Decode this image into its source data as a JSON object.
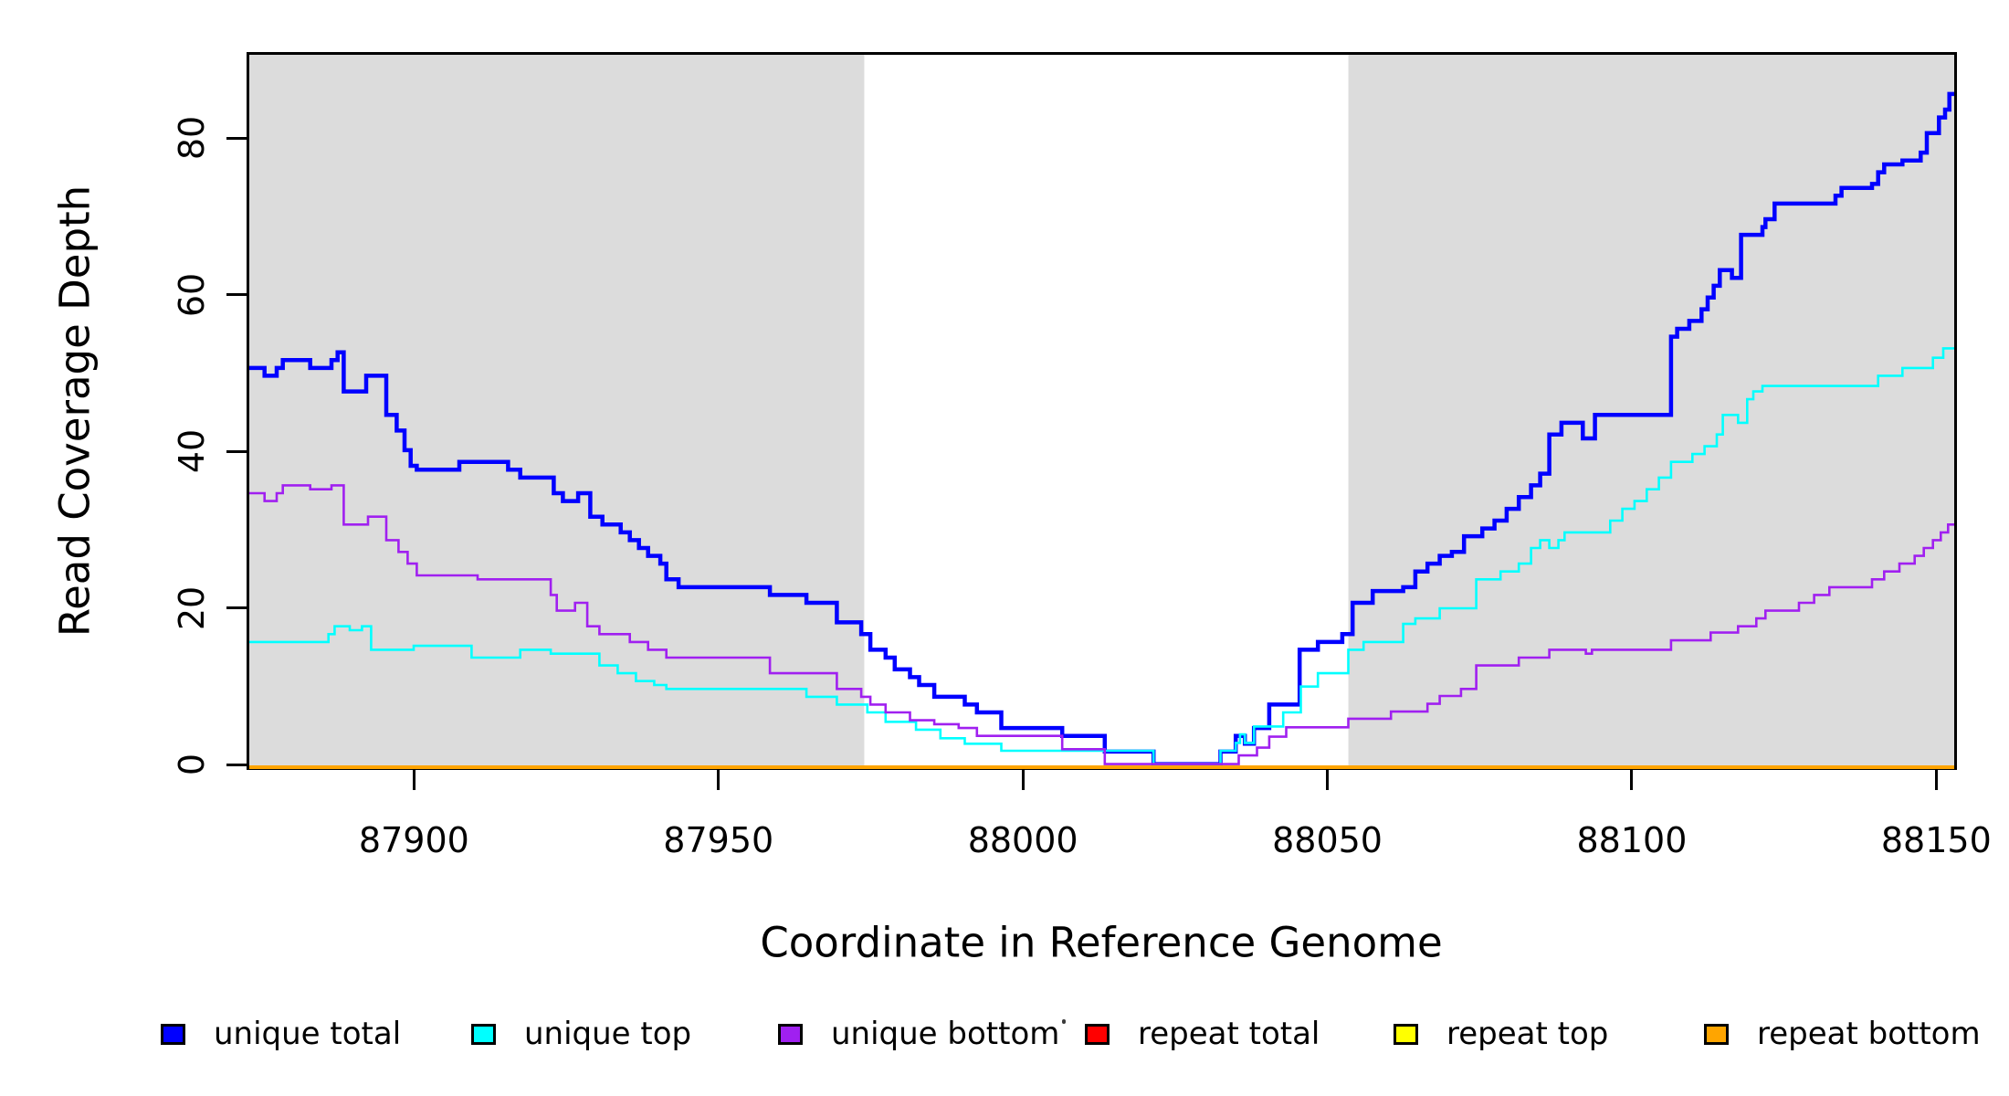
{
  "chart_data": {
    "type": "line",
    "subtype": "step",
    "title": "",
    "xlabel": "Coordinate in Reference Genome",
    "ylabel": "Read Coverage Depth",
    "xlim": [
      87872.5,
      88152.5
    ],
    "ylim": [
      0,
      91
    ],
    "grid": false,
    "plot_border_color": "#000000",
    "plot_background": "#FFFFFF",
    "x_tick_values": [
      87900,
      87950,
      88000,
      88050,
      88100,
      88150
    ],
    "x_tick_labels": [
      "87900",
      "87950",
      "88000",
      "88050",
      "88100",
      "88150"
    ],
    "y_tick_values": [
      0,
      20,
      40,
      60,
      80
    ],
    "y_tick_labels": [
      "0",
      "20",
      "40",
      "60",
      "80"
    ],
    "shaded_regions": [
      {
        "x_from": 87872.5,
        "x_to": 87973.5,
        "color": "#DCDCDC"
      },
      {
        "x_from": 88053.0,
        "x_to": 88152.5,
        "color": "#DCDCDC"
      }
    ],
    "series": [
      {
        "name": "unique total",
        "color": "#0000FF",
        "line_width": 4.5,
        "steps": [
          [
            87872.5,
            51
          ],
          [
            87875,
            50
          ],
          [
            87877,
            51
          ],
          [
            87878,
            52
          ],
          [
            87882.5,
            51
          ],
          [
            87886,
            52
          ],
          [
            87887,
            53
          ],
          [
            87888,
            48
          ],
          [
            87891.7,
            50
          ],
          [
            87895,
            45
          ],
          [
            87896.7,
            43
          ],
          [
            87898,
            40.5
          ],
          [
            87899,
            38.5
          ],
          [
            87900,
            38
          ],
          [
            87907,
            39
          ],
          [
            87915,
            38
          ],
          [
            87917,
            37
          ],
          [
            87922.5,
            35
          ],
          [
            87924,
            34
          ],
          [
            87926.5,
            35
          ],
          [
            87928.5,
            32
          ],
          [
            87930.5,
            31
          ],
          [
            87933.5,
            30
          ],
          [
            87935,
            29
          ],
          [
            87936.5,
            28
          ],
          [
            87938,
            27
          ],
          [
            87940,
            26
          ],
          [
            87941,
            24
          ],
          [
            87943,
            23
          ],
          [
            87958,
            22
          ],
          [
            87964,
            21
          ],
          [
            87969,
            18.5
          ],
          [
            87973,
            17
          ],
          [
            87974.5,
            15
          ],
          [
            87977,
            14
          ],
          [
            87978.5,
            12.5
          ],
          [
            87981,
            11.5
          ],
          [
            87982.5,
            10.5
          ],
          [
            87985,
            9
          ],
          [
            87990,
            8
          ],
          [
            87992,
            7
          ],
          [
            87996,
            5
          ],
          [
            88006,
            4
          ],
          [
            88013,
            2
          ],
          [
            88021,
            0.4
          ],
          [
            88032,
            2
          ],
          [
            88034.5,
            4
          ],
          [
            88036,
            3
          ],
          [
            88037.5,
            5
          ],
          [
            88040,
            8
          ],
          [
            88045,
            15
          ],
          [
            88048,
            16
          ],
          [
            88052,
            17
          ],
          [
            88053.7,
            21
          ],
          [
            88057,
            22.5
          ],
          [
            88062,
            23
          ],
          [
            88064,
            25
          ],
          [
            88066,
            26
          ],
          [
            88068,
            27
          ],
          [
            88070,
            27.5
          ],
          [
            88072,
            29.5
          ],
          [
            88075,
            30.5
          ],
          [
            88077,
            31.5
          ],
          [
            88079,
            33
          ],
          [
            88081,
            34.5
          ],
          [
            88083,
            36
          ],
          [
            88084.5,
            37.5
          ],
          [
            88086,
            42.5
          ],
          [
            88088,
            44
          ],
          [
            88091.5,
            42
          ],
          [
            88093.5,
            45
          ],
          [
            88106,
            55
          ],
          [
            88107,
            56
          ],
          [
            88109,
            57
          ],
          [
            88111,
            58.5
          ],
          [
            88112,
            60
          ],
          [
            88113,
            61.5
          ],
          [
            88114,
            63.5
          ],
          [
            88116,
            62.5
          ],
          [
            88117.5,
            68
          ],
          [
            88121,
            69
          ],
          [
            88121.5,
            70
          ],
          [
            88123,
            72
          ],
          [
            88133,
            73
          ],
          [
            88134,
            74
          ],
          [
            88139,
            74.5
          ],
          [
            88140,
            76
          ],
          [
            88141,
            77
          ],
          [
            88144,
            77.5
          ],
          [
            88147,
            78.5
          ],
          [
            88148,
            81
          ],
          [
            88150,
            83
          ],
          [
            88151,
            84
          ],
          [
            88151.7,
            86
          ]
        ]
      },
      {
        "name": "unique top",
        "color": "#00FFFF",
        "line_width": 2.6,
        "steps": [
          [
            87872.5,
            16
          ],
          [
            87885.5,
            17
          ],
          [
            87886.5,
            18
          ],
          [
            87889,
            17.5
          ],
          [
            87891,
            18
          ],
          [
            87892.5,
            15
          ],
          [
            87899.5,
            15.5
          ],
          [
            87909,
            14
          ],
          [
            87917,
            15
          ],
          [
            87922,
            14.5
          ],
          [
            87930,
            13
          ],
          [
            87933,
            12
          ],
          [
            87936,
            11
          ],
          [
            87939,
            10.5
          ],
          [
            87941,
            10
          ],
          [
            87964,
            9
          ],
          [
            87969,
            8
          ],
          [
            87974,
            7
          ],
          [
            87977,
            5.8
          ],
          [
            87982,
            4.8
          ],
          [
            87986,
            3.7
          ],
          [
            87990,
            3
          ],
          [
            87996,
            2.1
          ],
          [
            88021,
            0.4
          ],
          [
            88032,
            2.1
          ],
          [
            88034.5,
            3.1
          ],
          [
            88035.2,
            4.2
          ],
          [
            88036,
            3.1
          ],
          [
            88037.5,
            5.2
          ],
          [
            88042.3,
            7
          ],
          [
            88045.2,
            10.3
          ],
          [
            88048,
            12
          ],
          [
            88053,
            15
          ],
          [
            88055.5,
            16
          ],
          [
            88062,
            18.3
          ],
          [
            88064,
            19
          ],
          [
            88068,
            20.3
          ],
          [
            88074,
            24
          ],
          [
            88078,
            25
          ],
          [
            88081,
            26
          ],
          [
            88083,
            28
          ],
          [
            88084.5,
            29
          ],
          [
            88086,
            28
          ],
          [
            88087.5,
            29
          ],
          [
            88088.5,
            30
          ],
          [
            88096,
            31.5
          ],
          [
            88098,
            33
          ],
          [
            88100,
            34
          ],
          [
            88102,
            35.5
          ],
          [
            88104,
            37
          ],
          [
            88106,
            39
          ],
          [
            88109.5,
            40
          ],
          [
            88111.5,
            41
          ],
          [
            88113.5,
            42.5
          ],
          [
            88114.5,
            45
          ],
          [
            88117,
            44
          ],
          [
            88118.5,
            47
          ],
          [
            88119.5,
            48
          ],
          [
            88121,
            48.7
          ],
          [
            88140,
            50
          ],
          [
            88144,
            51
          ],
          [
            88149,
            52.3
          ],
          [
            88150.7,
            53.5
          ]
        ]
      },
      {
        "name": "unique bottom",
        "color": "#A020F0",
        "line_width": 2.6,
        "steps": [
          [
            87872.5,
            35
          ],
          [
            87875,
            34
          ],
          [
            87877,
            35
          ],
          [
            87878,
            36
          ],
          [
            87882.5,
            35.5
          ],
          [
            87886,
            36
          ],
          [
            87888,
            31
          ],
          [
            87892,
            32
          ],
          [
            87895,
            29
          ],
          [
            87897,
            27.5
          ],
          [
            87898.5,
            26
          ],
          [
            87900,
            24.5
          ],
          [
            87910,
            24
          ],
          [
            87922,
            22
          ],
          [
            87923,
            20
          ],
          [
            87926,
            21
          ],
          [
            87928,
            18
          ],
          [
            87930,
            17
          ],
          [
            87935,
            16
          ],
          [
            87938,
            15
          ],
          [
            87941,
            14
          ],
          [
            87958,
            12
          ],
          [
            87969,
            10
          ],
          [
            87973,
            9
          ],
          [
            87974.5,
            8
          ],
          [
            87977,
            7
          ],
          [
            87981,
            6
          ],
          [
            87985,
            5.5
          ],
          [
            87989,
            5
          ],
          [
            87992,
            4
          ],
          [
            88006,
            2.3
          ],
          [
            88013,
            0.4
          ],
          [
            88035,
            1.5
          ],
          [
            88038,
            2.5
          ],
          [
            88040,
            3.9
          ],
          [
            88042.8,
            5.1
          ],
          [
            88053,
            6.2
          ],
          [
            88060,
            7.1
          ],
          [
            88066,
            8.1
          ],
          [
            88068,
            9.1
          ],
          [
            88071.5,
            10
          ],
          [
            88074,
            13
          ],
          [
            88081,
            14
          ],
          [
            88086,
            15
          ],
          [
            88092,
            14.5
          ],
          [
            88093,
            15
          ],
          [
            88106,
            16.2
          ],
          [
            88112.5,
            17.2
          ],
          [
            88117,
            18
          ],
          [
            88120,
            19
          ],
          [
            88121.5,
            20
          ],
          [
            88127,
            21
          ],
          [
            88129.5,
            22
          ],
          [
            88132,
            23
          ],
          [
            88139,
            24
          ],
          [
            88141,
            25
          ],
          [
            88143.5,
            26
          ],
          [
            88146,
            27
          ],
          [
            88147.5,
            28
          ],
          [
            88149,
            29
          ],
          [
            88150.3,
            30
          ],
          [
            88151.5,
            31
          ]
        ]
      },
      {
        "name": "repeat total",
        "color": "#FF0000",
        "line_width": 4,
        "steps": [
          [
            87872.5,
            0
          ]
        ]
      },
      {
        "name": "repeat top",
        "color": "#FFFF00",
        "line_width": 4,
        "steps": [
          [
            87872.5,
            0
          ]
        ]
      },
      {
        "name": "repeat bottom",
        "color": "#FFA500",
        "line_width": 4,
        "steps": [
          [
            87872.5,
            0
          ]
        ]
      }
    ],
    "legend": {
      "position": "bottom",
      "entries": [
        {
          "label": "unique total",
          "color": "#0000FF"
        },
        {
          "label": "unique top",
          "color": "#00FFFF"
        },
        {
          "label": "unique bottom",
          "color": "#A020F0"
        },
        {
          "label": "repeat total",
          "color": "#FF0000"
        },
        {
          "label": "repeat top",
          "color": "#FFFF00"
        },
        {
          "label": "repeat bottom",
          "color": "#FFA500"
        }
      ]
    }
  }
}
